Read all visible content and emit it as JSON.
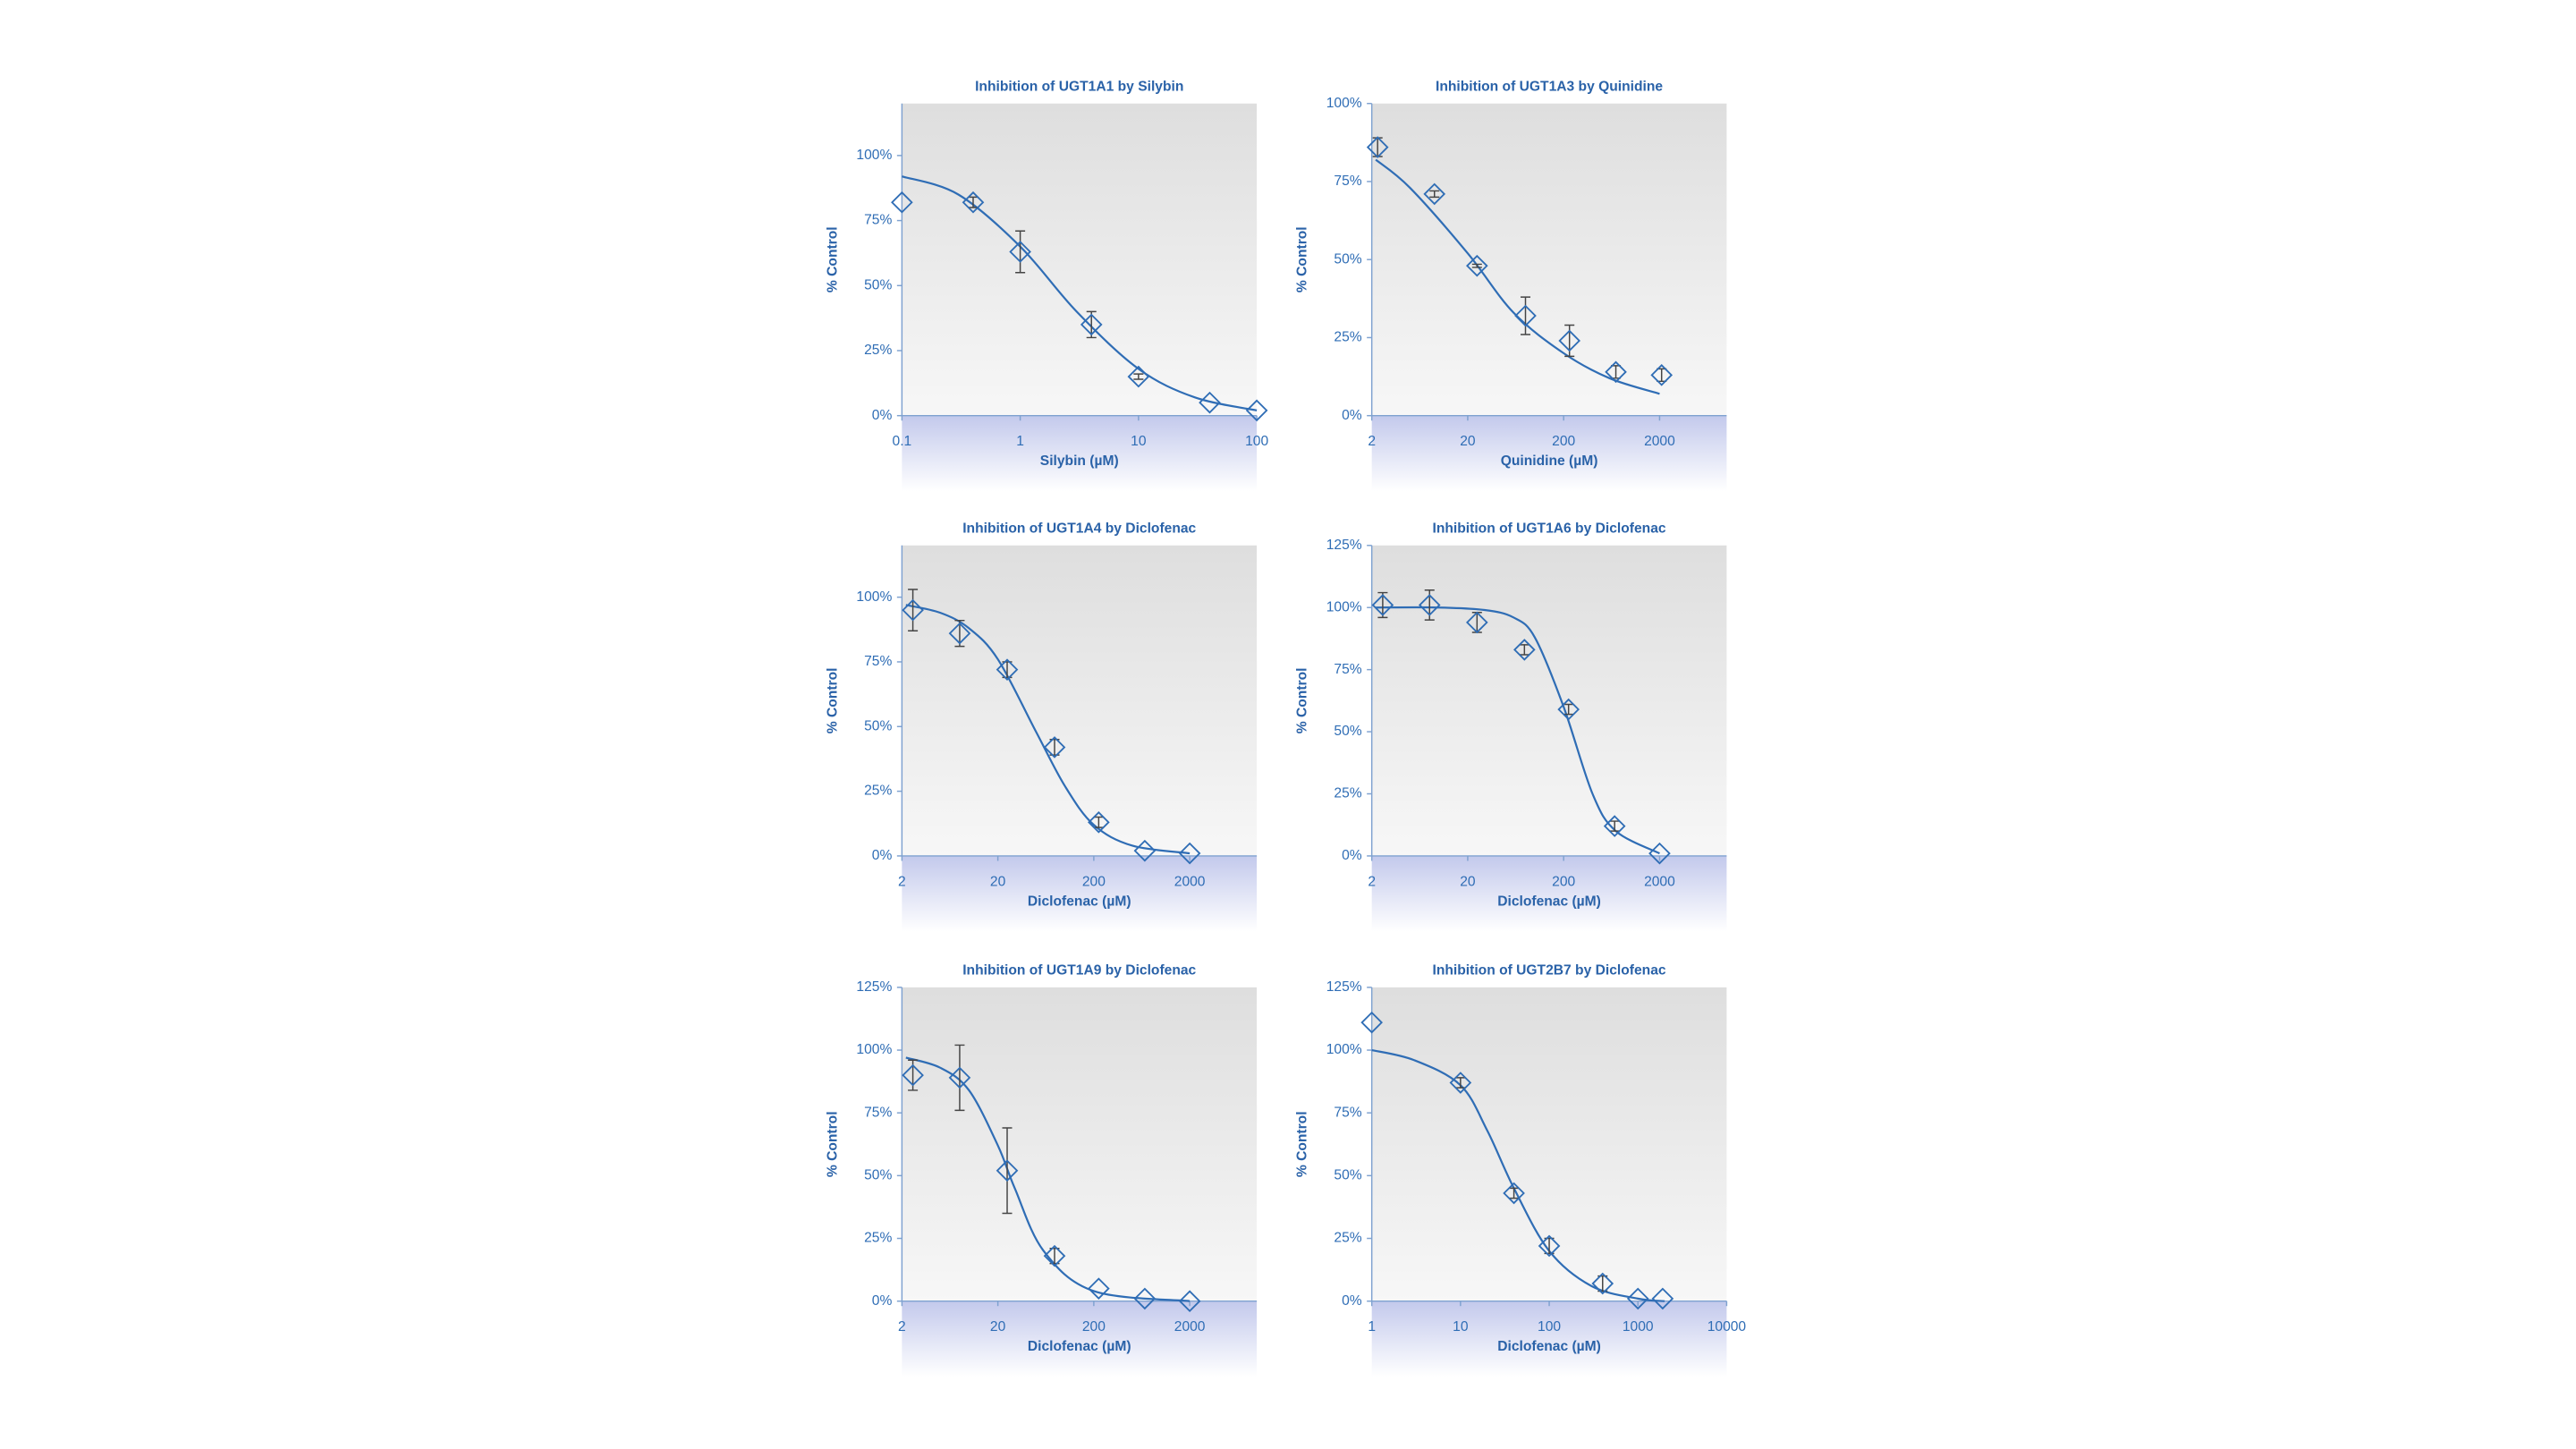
{
  "chart_data": [
    {
      "type": "scatter",
      "title": "Inhibition of UGT1A1 by Silybin",
      "xlabel": "Silybin (µM)",
      "ylabel": "% Control",
      "xscale": "log",
      "xlim": [
        0.1,
        100
      ],
      "xticks": [
        0.1,
        1,
        10,
        100
      ],
      "ylim": [
        0,
        120
      ],
      "yticks": [
        {
          "value": 0,
          "label": "0%"
        },
        {
          "value": 25,
          "label": "25%"
        },
        {
          "value": 50,
          "label": "50%"
        },
        {
          "value": 75,
          "label": "75%"
        },
        {
          "value": 100,
          "label": "100%"
        }
      ],
      "color": "#2f6db5",
      "points": {
        "x": [
          0.1,
          0.4,
          1,
          4,
          10,
          40,
          100
        ],
        "values": [
          82,
          82,
          63,
          35,
          15,
          5,
          2
        ],
        "errors": [
          null,
          2,
          8,
          5,
          1,
          null,
          null
        ]
      },
      "curve": {
        "x": [
          0.1,
          0.3,
          1,
          3,
          10,
          30,
          100
        ],
        "values": [
          92,
          85,
          65,
          40,
          18,
          7,
          2
        ]
      }
    },
    {
      "type": "scatter",
      "title": "Inhibition of UGT1A3 by Quinidine",
      "xlabel": "Quinidine (µM)",
      "ylabel": "% Control",
      "xscale": "log",
      "xlim": [
        2,
        10000
      ],
      "xticks": [
        2,
        20,
        200,
        2000
      ],
      "ylim": [
        0,
        100
      ],
      "yticks": [
        {
          "value": 0,
          "label": "0%"
        },
        {
          "value": 25,
          "label": "25%"
        },
        {
          "value": 50,
          "label": "50%"
        },
        {
          "value": 75,
          "label": "75%"
        },
        {
          "value": 100,
          "label": "100%"
        }
      ],
      "color": "#2f6db5",
      "points": {
        "x": [
          2.3,
          9,
          25,
          80,
          230,
          700,
          2100
        ],
        "values": [
          86,
          71,
          48,
          32,
          24,
          14,
          13
        ],
        "errors": [
          3,
          1,
          0.5,
          6,
          5,
          2,
          2
        ]
      },
      "curve": {
        "x": [
          2.2,
          5,
          20,
          60,
          200,
          600,
          2000
        ],
        "values": [
          82,
          73,
          52,
          33,
          20,
          12,
          7
        ]
      }
    },
    {
      "type": "scatter",
      "title": "Inhibition of UGT1A4 by Diclofenac",
      "xlabel": "Diclofenac (µM)",
      "ylabel": "% Control",
      "xscale": "log",
      "xlim": [
        2,
        10000
      ],
      "xticks": [
        2,
        20,
        200,
        2000
      ],
      "ylim": [
        0,
        120
      ],
      "yticks": [
        {
          "value": 0,
          "label": "0%"
        },
        {
          "value": 25,
          "label": "25%"
        },
        {
          "value": 50,
          "label": "50%"
        },
        {
          "value": 75,
          "label": "75%"
        },
        {
          "value": 100,
          "label": "100%"
        }
      ],
      "color": "#2f6db5",
      "points": {
        "x": [
          2.6,
          8,
          25,
          78,
          225,
          680,
          2000
        ],
        "values": [
          95,
          86,
          72,
          42,
          13,
          2,
          1
        ],
        "errors": [
          8,
          5,
          3,
          3,
          2,
          null,
          null
        ]
      },
      "curve": {
        "x": [
          2.2,
          5,
          10,
          20,
          50,
          100,
          200,
          500,
          2000
        ],
        "values": [
          97,
          94,
          88,
          76,
          48,
          27,
          12,
          4,
          1
        ]
      }
    },
    {
      "type": "scatter",
      "title": "Inhibition of UGT1A6 by Diclofenac",
      "xlabel": "Diclofenac (µM)",
      "ylabel": "% Control",
      "xscale": "log",
      "xlim": [
        2,
        10000
      ],
      "xticks": [
        2,
        20,
        200,
        2000
      ],
      "ylim": [
        0,
        125
      ],
      "yticks": [
        {
          "value": 0,
          "label": "0%"
        },
        {
          "value": 25,
          "label": "25%"
        },
        {
          "value": 50,
          "label": "50%"
        },
        {
          "value": 75,
          "label": "75%"
        },
        {
          "value": 100,
          "label": "100%"
        },
        {
          "value": 125,
          "label": "125%"
        }
      ],
      "color": "#2f6db5",
      "points": {
        "x": [
          2.6,
          8,
          25,
          78,
          225,
          680,
          2000
        ],
        "values": [
          101,
          101,
          94,
          83,
          59,
          12,
          1
        ],
        "errors": [
          5,
          6,
          4,
          2,
          2,
          2,
          null
        ]
      },
      "curve": {
        "x": [
          2.2,
          10,
          30,
          60,
          100,
          200,
          400,
          700,
          2000
        ],
        "values": [
          100,
          100,
          99,
          96,
          88,
          60,
          25,
          10,
          1
        ]
      }
    },
    {
      "type": "scatter",
      "title": "Inhibition of UGT1A9 by Diclofenac",
      "xlabel": "Diclofenac (µM)",
      "ylabel": "% Control",
      "xscale": "log",
      "xlim": [
        2,
        10000
      ],
      "xticks": [
        2,
        20,
        200,
        2000
      ],
      "ylim": [
        0,
        125
      ],
      "yticks": [
        {
          "value": 0,
          "label": "0%"
        },
        {
          "value": 25,
          "label": "25%"
        },
        {
          "value": 50,
          "label": "50%"
        },
        {
          "value": 75,
          "label": "75%"
        },
        {
          "value": 100,
          "label": "100%"
        },
        {
          "value": 125,
          "label": "125%"
        }
      ],
      "color": "#2f6db5",
      "points": {
        "x": [
          2.6,
          8,
          25,
          78,
          225,
          680,
          2000
        ],
        "values": [
          90,
          89,
          52,
          18,
          5,
          1,
          0
        ],
        "errors": [
          6,
          13,
          17,
          3,
          null,
          null,
          null
        ]
      },
      "curve": {
        "x": [
          2.2,
          5,
          10,
          20,
          30,
          60,
          200,
          2000
        ],
        "values": [
          97,
          93,
          84,
          62,
          45,
          20,
          4,
          0
        ]
      }
    },
    {
      "type": "scatter",
      "title": "Inhibition of UGT2B7 by Diclofenac",
      "xlabel": "Diclofenac (µM)",
      "ylabel": "% Control",
      "xscale": "log",
      "xlim": [
        1,
        10000
      ],
      "xticks": [
        1,
        10,
        100,
        1000,
        10000
      ],
      "ylim": [
        0,
        125
      ],
      "yticks": [
        {
          "value": 0,
          "label": "0%"
        },
        {
          "value": 25,
          "label": "25%"
        },
        {
          "value": 50,
          "label": "50%"
        },
        {
          "value": 75,
          "label": "75%"
        },
        {
          "value": 100,
          "label": "100%"
        },
        {
          "value": 125,
          "label": "125%"
        }
      ],
      "color": "#2f6db5",
      "points": {
        "x": [
          1,
          10,
          40,
          100,
          400,
          1000,
          1900
        ],
        "values": [
          111,
          87,
          43,
          22,
          7,
          1,
          1
        ],
        "errors": [
          null,
          2,
          2,
          3,
          3,
          null,
          null
        ]
      },
      "curve": {
        "x": [
          1,
          3,
          10,
          20,
          40,
          100,
          300,
          1000,
          2000
        ],
        "values": [
          100,
          96,
          86,
          68,
          45,
          20,
          6,
          1,
          0
        ]
      }
    }
  ]
}
